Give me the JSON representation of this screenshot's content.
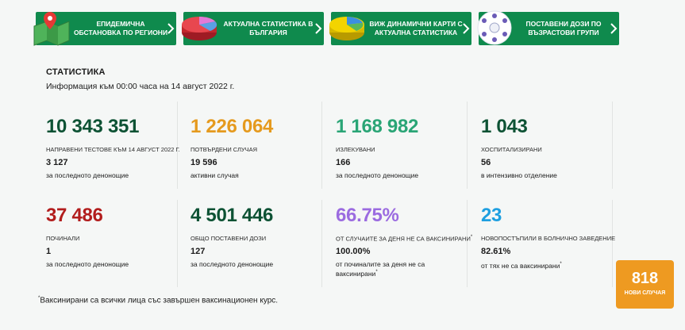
{
  "nav": [
    {
      "label": "ЕПИДЕМИЧНА ОБСТАНОВКА ПО РЕГИОНИ",
      "icon": "map-pin-icon"
    },
    {
      "label": "АКТУАЛНА СТАТИСТИКА В БЪЛГАРИЯ",
      "icon": "pie-chart-red-icon"
    },
    {
      "label": "ВИЖ ДИНАМИЧНИ КАРТИ С АКТУАЛНА СТАТИСТИКА",
      "icon": "pie-chart-yellow-icon"
    },
    {
      "label": "ПОСТАВЕНИ ДОЗИ ПО ВЪЗРАСТОВИ ГРУПИ",
      "icon": "people-circle-icon"
    }
  ],
  "stats": {
    "title": "СТАТИСТИКА",
    "subtitle": "Информация към 00:00 часа на 14 август 2022 г.",
    "cards": [
      {
        "value": "10 343 351",
        "color": "#0d5234",
        "caption": "НАПРАВЕНИ ТЕСТОВЕ КЪМ 14 АВГУСТ 2022 Г.",
        "sub": "3 127",
        "note": "за последното денонощие"
      },
      {
        "value": "1 226 064",
        "color": "#e59a1e",
        "caption": "ПОТВЪРДЕНИ СЛУЧАЯ",
        "sub": "19 596",
        "note": "активни случая"
      },
      {
        "value": "1 168 982",
        "color": "#2aa576",
        "caption": "ИЗЛЕКУВАНИ",
        "sub": "166",
        "note": "за последното денонощие"
      },
      {
        "value": "1 043",
        "color": "#0d5234",
        "caption": "ХОСПИТАЛИЗИРАНИ",
        "sub": "56",
        "note": "в интензивно отделение"
      },
      {
        "value": "37 486",
        "color": "#b21d1d",
        "caption": "ПОЧИНАЛИ",
        "sub": "1",
        "note": "за последното денонощие"
      },
      {
        "value": "4 501 446",
        "color": "#0d5234",
        "caption": "ОБЩО ПОСТАВЕНИ ДОЗИ",
        "sub": "127",
        "note": "за последното денонощие"
      },
      {
        "value": "66.75%",
        "color": "#9b6be0",
        "caption": "ОТ СЛУЧАИТЕ ЗА ДЕНЯ НЕ СА ВАКСИНИРАНИ",
        "caption_sup": "*",
        "sub": "100.00%",
        "note": "от починалите за деня не са ваксинирани",
        "note_sup": "*"
      },
      {
        "value": "23",
        "color": "#1e9fe0",
        "caption": "НОВОПОСТЪПИЛИ В БОЛНИЧНО ЗАВЕДЕНИЕ",
        "sub": "82.61%",
        "note": "от тях не са ваксинирани",
        "note_sup": "*"
      }
    ]
  },
  "footnote": {
    "mark": "*",
    "text": "Ваксинирани са всички лица със завършен ваксинационен курс."
  },
  "badge": {
    "value": "818",
    "label": "НОВИ СЛУЧАЯ"
  }
}
